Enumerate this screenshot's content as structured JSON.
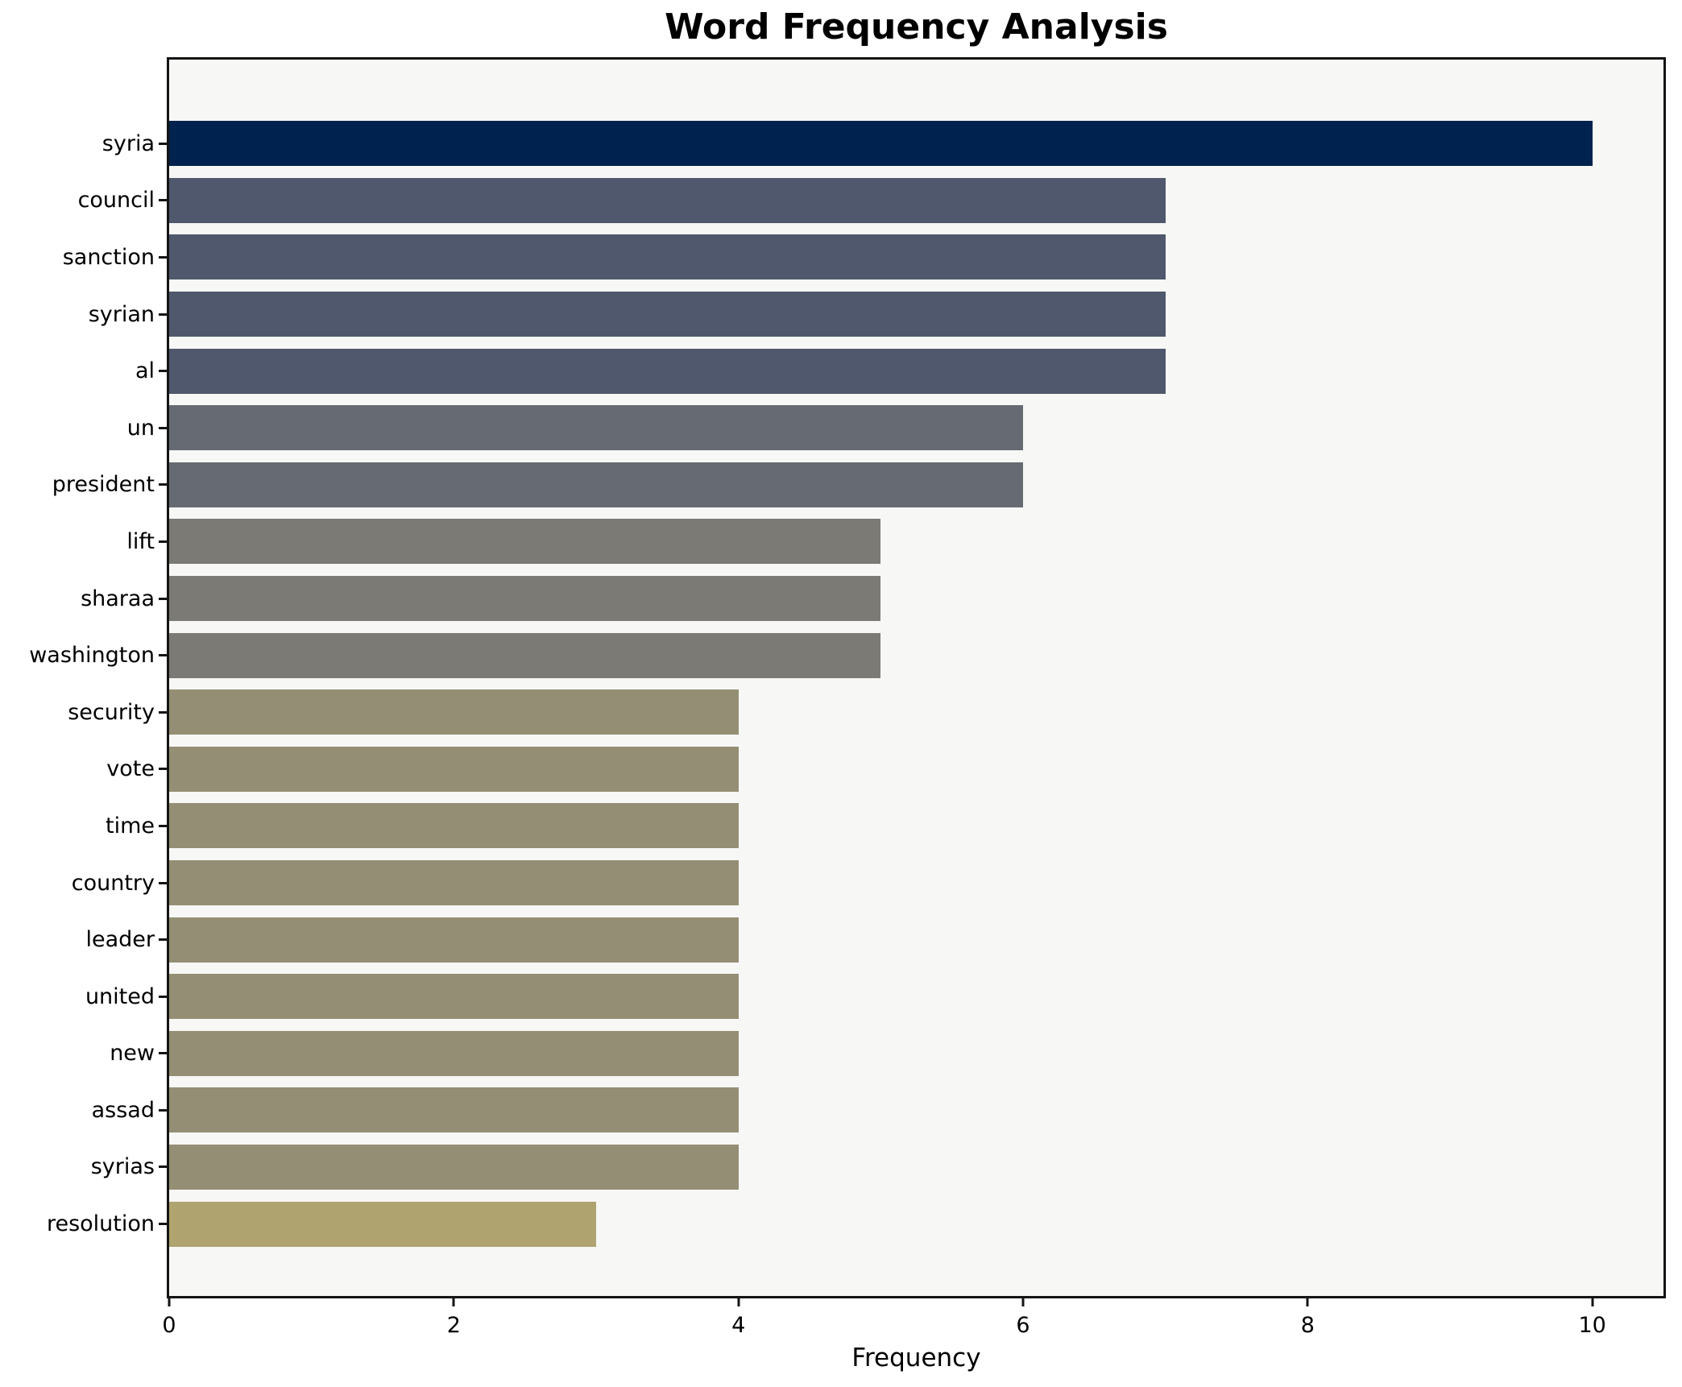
{
  "title": "Word Frequency Analysis",
  "colors": {
    "plot_background": "#f7f7f5",
    "figure_background": "#ffffff",
    "spine": "#141414",
    "text": "#000000"
  },
  "chart_data": {
    "type": "bar",
    "orientation": "horizontal",
    "title": "Word Frequency Analysis",
    "xlabel": "Frequency",
    "ylabel": "",
    "xlim": [
      0,
      10.5
    ],
    "xticks": [
      0,
      2,
      4,
      6,
      8,
      10
    ],
    "grid": false,
    "legend": false,
    "categories": [
      "syria",
      "council",
      "sanction",
      "syrian",
      "al",
      "un",
      "president",
      "lift",
      "sharaa",
      "washington",
      "security",
      "vote",
      "time",
      "country",
      "leader",
      "united",
      "new",
      "assad",
      "syrias",
      "resolution"
    ],
    "values": [
      10,
      7,
      7,
      7,
      7,
      6,
      6,
      5,
      5,
      5,
      4,
      4,
      4,
      4,
      4,
      4,
      4,
      4,
      4,
      3
    ],
    "bar_colors": [
      "#00224e",
      "#4f586c",
      "#4f586c",
      "#4f586c",
      "#4f586c",
      "#666a73",
      "#666a73",
      "#7b7a75",
      "#7b7a75",
      "#7b7a75",
      "#948e74",
      "#948e74",
      "#948e74",
      "#948e74",
      "#948e74",
      "#948e74",
      "#948e74",
      "#948e74",
      "#948e74",
      "#afa36f"
    ]
  }
}
